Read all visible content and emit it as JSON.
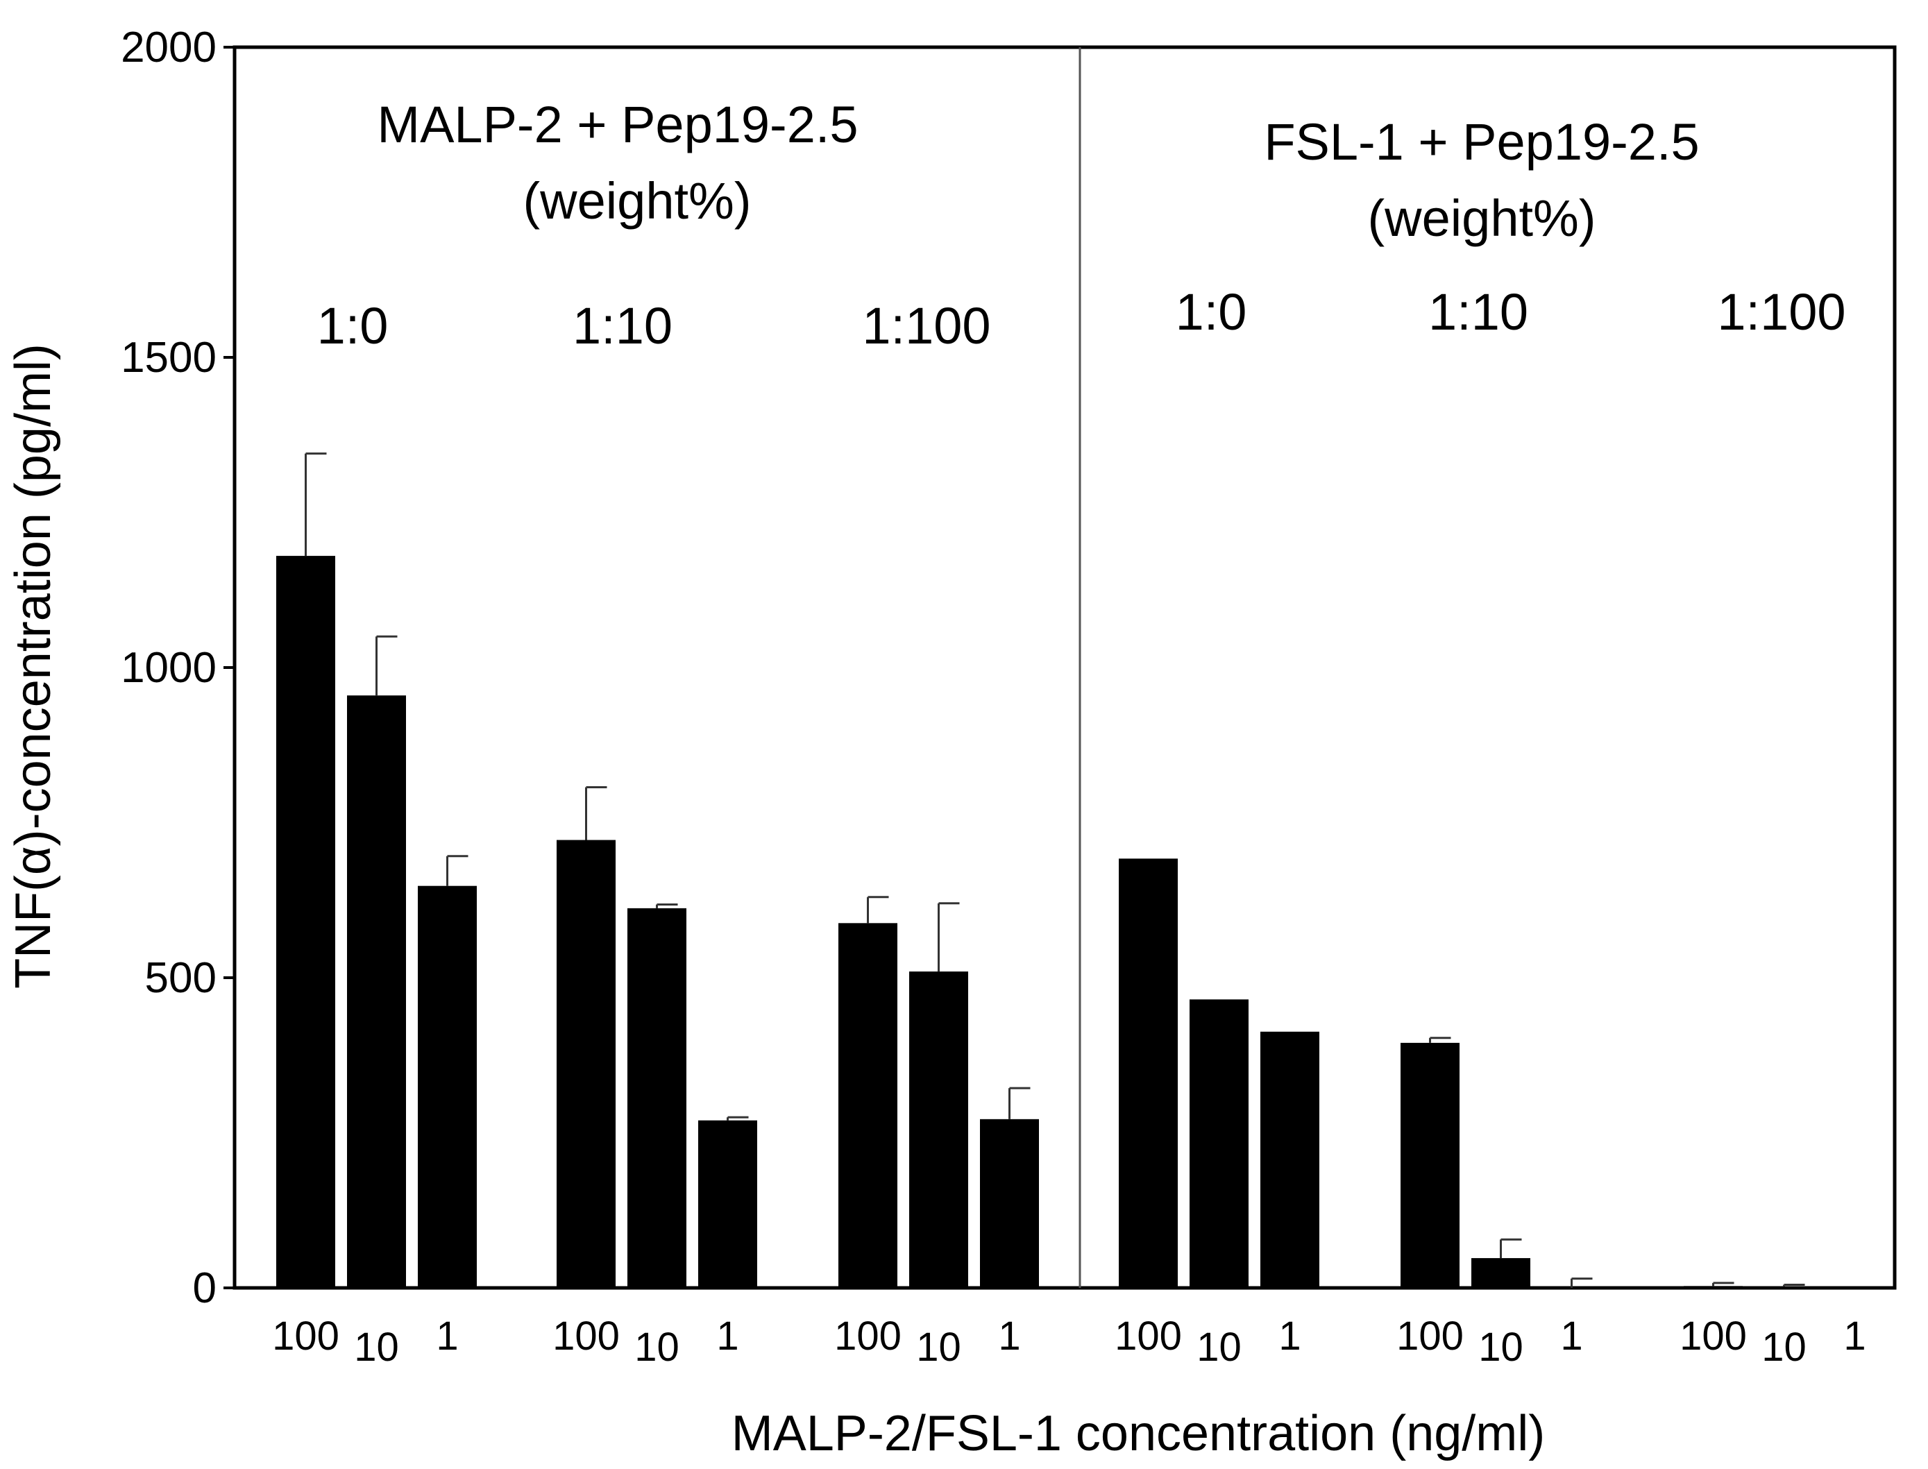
{
  "chart_data": {
    "type": "bar",
    "title": "",
    "xlabel": "MALP-2/FSL-1 concentration (ng/ml)",
    "ylabel": "TNF(α)-concentration (pg/ml)",
    "ylim": [
      0,
      2000
    ],
    "yticks": [
      0,
      500,
      1000,
      1500,
      2000
    ],
    "grid": false,
    "legend": "none",
    "panels": [
      {
        "title_line1": "MALP-2 + Pep19-2.5",
        "title_line2": "(weight%)",
        "groups": [
          {
            "ratio": "1:0",
            "bars": [
              {
                "conc": "100",
                "value": 1180,
                "error": 165
              },
              {
                "conc": "10",
                "value": 955,
                "error": 95
              },
              {
                "conc": "1",
                "value": 648,
                "error": 48
              }
            ]
          },
          {
            "ratio": "1:10",
            "bars": [
              {
                "conc": "100",
                "value": 722,
                "error": 85
              },
              {
                "conc": "10",
                "value": 612,
                "error": 6
              },
              {
                "conc": "1",
                "value": 270,
                "error": 5
              }
            ]
          },
          {
            "ratio": "1:100",
            "bars": [
              {
                "conc": "100",
                "value": 588,
                "error": 42
              },
              {
                "conc": "10",
                "value": 510,
                "error": 110
              },
              {
                "conc": "1",
                "value": 272,
                "error": 50
              }
            ]
          }
        ]
      },
      {
        "title_line1": "FSL-1 + Pep19-2.5",
        "title_line2": "(weight%)",
        "groups": [
          {
            "ratio": "1:0",
            "bars": [
              {
                "conc": "100",
                "value": 692,
                "error": 0
              },
              {
                "conc": "10",
                "value": 465,
                "error": 0
              },
              {
                "conc": "1",
                "value": 413,
                "error": 0
              }
            ]
          },
          {
            "ratio": "1:10",
            "bars": [
              {
                "conc": "100",
                "value": 395,
                "error": 8
              },
              {
                "conc": "10",
                "value": 48,
                "error": 30
              },
              {
                "conc": "1",
                "value": 0,
                "error": 15
              }
            ]
          },
          {
            "ratio": "1:100",
            "bars": [
              {
                "conc": "100",
                "value": 3,
                "error": 5
              },
              {
                "conc": "10",
                "value": 2,
                "error": 3
              },
              {
                "conc": "1",
                "value": 0,
                "error": 0
              }
            ]
          }
        ]
      }
    ]
  }
}
